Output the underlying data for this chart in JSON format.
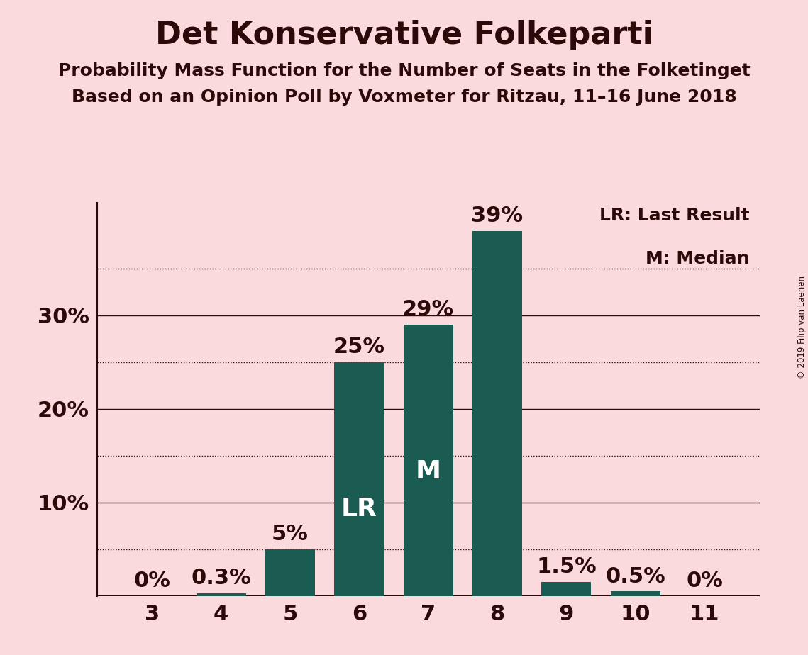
{
  "title": "Det Konservative Folkeparti",
  "subtitle1": "Probability Mass Function for the Number of Seats in the Folketinget",
  "subtitle2": "Based on an Opinion Poll by Voxmeter for Ritzau, 11–16 June 2018",
  "copyright": "© 2019 Filip van Laenen",
  "categories": [
    3,
    4,
    5,
    6,
    7,
    8,
    9,
    10,
    11
  ],
  "values": [
    0.0,
    0.3,
    5.0,
    25.0,
    29.0,
    39.0,
    1.5,
    0.5,
    0.0
  ],
  "labels": [
    "0%",
    "0.3%",
    "5%",
    "25%",
    "29%",
    "39%",
    "1.5%",
    "0.5%",
    "0%"
  ],
  "bar_color": "#1a5c52",
  "background_color": "#fadadd",
  "text_color": "#2d0a0a",
  "lr_bar": 6,
  "median_bar": 7,
  "lr_label": "LR",
  "median_label": "M",
  "legend_lr": "LR: Last Result",
  "legend_m": "M: Median",
  "yticks": [
    10,
    20,
    30
  ],
  "ytick_labels": [
    "10%",
    "20%",
    "30%"
  ],
  "dotted_yticks": [
    5,
    15,
    25,
    35
  ],
  "solid_yticks": [
    10,
    20,
    30
  ],
  "ylim": [
    0,
    42
  ],
  "title_fontsize": 32,
  "subtitle_fontsize": 18,
  "axis_fontsize": 22,
  "bar_label_fontsize": 22,
  "inner_label_fontsize": 26,
  "legend_fontsize": 18
}
